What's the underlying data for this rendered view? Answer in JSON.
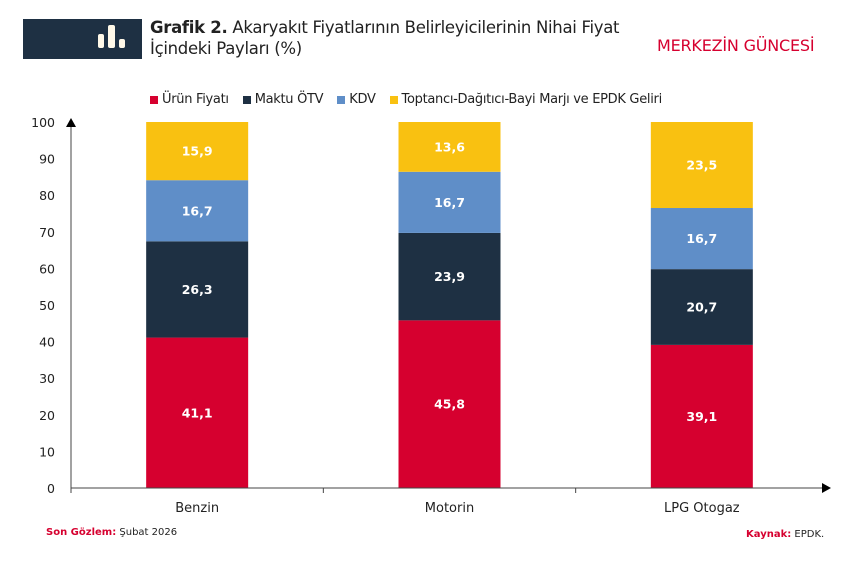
{
  "header": {
    "title_bold": "Grafik 2.",
    "title_rest": " Akaryakıt Fiyatlarının Belirleyicilerinin Nihai Fiyat",
    "title_line2": "İçindeki Payları (%)",
    "brand": "MERKEZİN GÜNCESİ",
    "icon": "bar-chart-icon"
  },
  "chart_data": {
    "type": "bar",
    "stacked": true,
    "title": "Grafik 2. Akaryakıt Fiyatlarının Belirleyicilerinin Nihai Fiyat İçindeki Payları (%)",
    "categories": [
      "Benzin",
      "Motorin",
      "LPG Otogaz"
    ],
    "series": [
      {
        "name": "Ürün Fiyatı",
        "color": "#d6002f",
        "values": [
          41.1,
          45.8,
          39.1
        ],
        "labels": [
          "41,1",
          "45,8",
          "39,1"
        ]
      },
      {
        "name": "Maktu ÖTV",
        "color": "#1e3043",
        "values": [
          26.3,
          23.9,
          20.7
        ],
        "labels": [
          "26,3",
          "23,9",
          "20,7"
        ]
      },
      {
        "name": "KDV",
        "color": "#5f8ec8",
        "values": [
          16.7,
          16.7,
          16.7
        ],
        "labels": [
          "16,7",
          "16,7",
          "16,7"
        ]
      },
      {
        "name": "Toptancı-Dağıtıcı-Bayi Marjı ve EPDK Geliri",
        "color": "#f9c111",
        "values": [
          15.9,
          13.6,
          23.5
        ],
        "labels": [
          "15,9",
          "13,6",
          "23,5"
        ]
      }
    ],
    "ylim": [
      0,
      100
    ],
    "yticks": [
      "0",
      "10",
      "20",
      "30",
      "40",
      "50",
      "60",
      "70",
      "80",
      "90",
      "100"
    ],
    "grid": false,
    "legend": "top"
  },
  "footer": {
    "left_label": "Son Gözlem:",
    "left_value": " Şubat 2026",
    "right_label": "Kaynak:",
    "right_value": " EPDK."
  }
}
